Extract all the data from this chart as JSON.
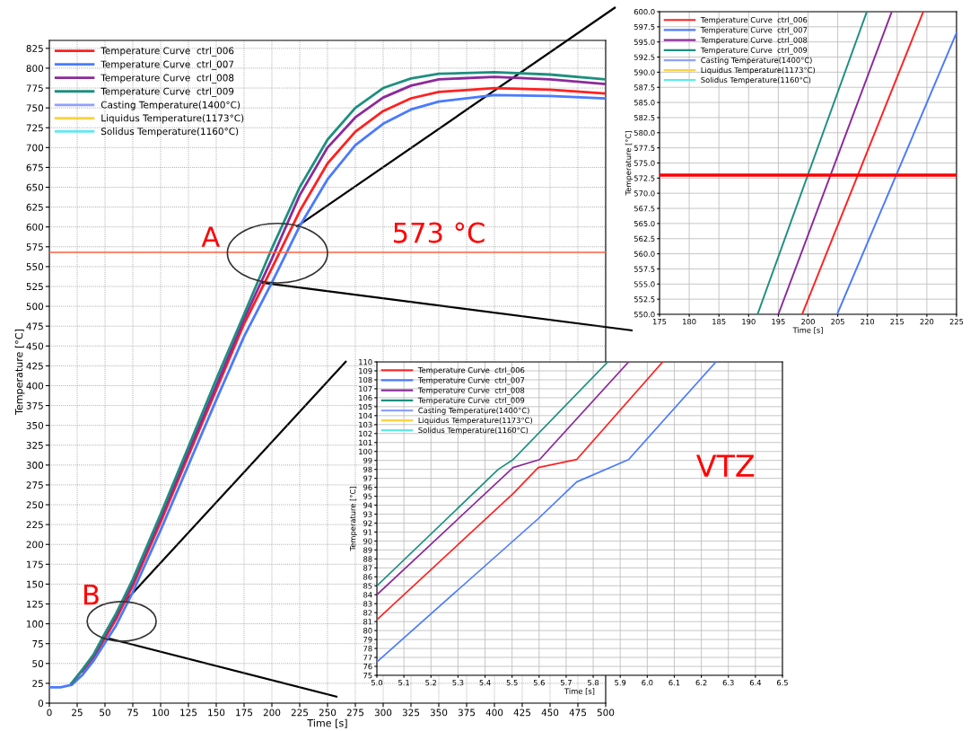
{
  "chart_data": [
    {
      "type": "line",
      "xlabel": "Time [s]",
      "ylabel": "Temperature [°C]",
      "xlim": [
        0,
        500
      ],
      "ylim": [
        0,
        835
      ],
      "xticks": [
        0,
        25,
        50,
        75,
        100,
        125,
        150,
        175,
        200,
        225,
        250,
        275,
        300,
        325,
        350,
        375,
        400,
        425,
        450,
        475,
        500
      ],
      "yticks": [
        0,
        25,
        50,
        75,
        100,
        125,
        150,
        175,
        200,
        225,
        250,
        275,
        300,
        325,
        350,
        375,
        400,
        425,
        450,
        475,
        500,
        525,
        550,
        575,
        600,
        625,
        650,
        675,
        700,
        725,
        750,
        775,
        800,
        825
      ],
      "grid": true,
      "legend": "top left",
      "x": [
        0,
        10,
        20,
        30,
        40,
        50,
        60,
        75,
        100,
        125,
        150,
        175,
        200,
        225,
        250,
        275,
        300,
        325,
        350,
        400,
        450,
        500
      ],
      "series": [
        {
          "name": "Temperature Curve  ctrl_006",
          "color": "#ff2020",
          "values": [
            null,
            null,
            null,
            40,
            58,
            82,
            106,
            148,
            228,
            312,
            395,
            478,
            548,
            620,
            680,
            720,
            746,
            762,
            770,
            775,
            773,
            768
          ]
        },
        {
          "name": "Temperature Curve  ctrl_007",
          "color": "#4a7aff",
          "values": [
            20,
            20,
            23,
            36,
            54,
            76,
            98,
            140,
            218,
            300,
            382,
            462,
            530,
            601,
            660,
            703,
            730,
            748,
            758,
            766,
            765,
            762
          ]
        },
        {
          "name": "Temperature Curve  ctrl_008",
          "color": "#8b2a9a",
          "values": [
            null,
            null,
            25,
            42,
            60,
            85,
            110,
            152,
            233,
            317,
            400,
            484,
            560,
            640,
            700,
            738,
            763,
            778,
            786,
            789,
            786,
            780
          ]
        },
        {
          "name": "Temperature Curve  ctrl_009",
          "color": "#1e8f7f",
          "values": [
            null,
            null,
            25,
            43,
            62,
            88,
            113,
            156,
            238,
            323,
            408,
            490,
            573,
            650,
            710,
            750,
            775,
            787,
            793,
            795,
            792,
            786
          ]
        },
        {
          "name": "Casting Temperature(1400°C)",
          "color": "#8fa0ff",
          "values": [
            null,
            null,
            null,
            null,
            null,
            null,
            null,
            null,
            null,
            null,
            null,
            null,
            null,
            null,
            null,
            null,
            null,
            null,
            null,
            null,
            null,
            null
          ]
        },
        {
          "name": "Liquidus Temperature(1173°C)",
          "color": "#ffd040",
          "values": [
            null,
            null,
            null,
            null,
            null,
            null,
            null,
            null,
            null,
            null,
            null,
            null,
            null,
            null,
            null,
            null,
            null,
            null,
            null,
            null,
            null,
            null
          ]
        },
        {
          "name": "Solidus Temperature(1160°C)",
          "color": "#60e8f0",
          "values": [
            null,
            null,
            null,
            null,
            null,
            null,
            null,
            null,
            null,
            null,
            null,
            null,
            null,
            null,
            null,
            null,
            null,
            null,
            null,
            null,
            null,
            null
          ]
        }
      ],
      "ref_lines": [
        {
          "axis": "y",
          "value": 568,
          "color": "#ff6040"
        }
      ],
      "annotations": [
        "A",
        "B",
        {
          "text": "573 °C",
          "x": 350,
          "y": 573
        }
      ]
    },
    {
      "type": "line",
      "xlabel": "Time [s]",
      "ylabel": "Temperature [°C]",
      "xlim": [
        175,
        225
      ],
      "ylim": [
        550,
        600
      ],
      "xticks": [
        175,
        180,
        185,
        190,
        195,
        200,
        205,
        210,
        215,
        220,
        225
      ],
      "yticks": [
        {
          "value": 550,
          "label": "550.0"
        },
        552.5,
        {
          "value": 555,
          "label": "555.0"
        },
        557.5,
        {
          "value": 560,
          "label": "560.0"
        },
        562.5,
        {
          "value": 565,
          "label": "565.0"
        },
        567.5,
        {
          "value": 570,
          "label": "570.0"
        },
        572.5,
        {
          "value": 575,
          "label": "575.0"
        },
        577.5,
        {
          "value": 580,
          "label": "580.0"
        },
        582.5,
        {
          "value": 585,
          "label": "585.0"
        },
        587.5,
        {
          "value": 590,
          "label": "590.0"
        },
        592.5,
        {
          "value": 595,
          "label": "595.0"
        },
        597.5,
        {
          "value": 600,
          "label": "600.0"
        }
      ],
      "grid": true,
      "legend": "top left",
      "series": [
        {
          "name": "Temperature Curve  ctrl_006",
          "color": "#ff2020",
          "x": [
            199.0,
            219.4
          ],
          "values": [
            550,
            600
          ]
        },
        {
          "name": "Temperature Curve  ctrl_007",
          "color": "#4a7aff",
          "x": [
            204.9,
            225
          ],
          "values": [
            550,
            596.5
          ]
        },
        {
          "name": "Temperature Curve  ctrl_008",
          "color": "#8b2a9a",
          "x": [
            195.0,
            214.1
          ],
          "values": [
            550,
            600
          ]
        },
        {
          "name": "Temperature Curve  ctrl_009",
          "color": "#1e8f7f",
          "x": [
            191.5,
            209.9
          ],
          "values": [
            550,
            600
          ]
        },
        {
          "name": "Casting Temperature(1400°C)",
          "color": "#8fa0ff"
        },
        {
          "name": "Liquidus Temperature(1173°C)",
          "color": "#ffd040"
        },
        {
          "name": "Solidus Temperature(1160°C)",
          "color": "#60e8f0"
        }
      ],
      "ref_lines": [
        {
          "axis": "y",
          "value": 573,
          "color": "#ff0000"
        }
      ]
    },
    {
      "type": "line",
      "xlabel": "Time [s]",
      "ylabel": "Temperature [°C]",
      "xlim": [
        5.0,
        6.5
      ],
      "ylim": [
        75,
        110
      ],
      "xticks": [
        {
          "value": 5.0,
          "label": "5.0"
        },
        5.1,
        5.2,
        5.3,
        5.4,
        5.5,
        5.6,
        5.7,
        5.8,
        5.9,
        {
          "value": 6.0,
          "label": "6.0"
        },
        6.1,
        6.2,
        6.3,
        6.4,
        6.5
      ],
      "yticks": [
        75,
        76,
        77,
        78,
        79,
        80,
        81,
        82,
        83,
        84,
        85,
        86,
        87,
        88,
        89,
        90,
        91,
        92,
        93,
        94,
        95,
        96,
        97,
        98,
        99,
        100,
        101,
        102,
        103,
        104,
        105,
        106,
        107,
        108,
        109,
        110
      ],
      "grid": true,
      "legend": "top left",
      "series": [
        {
          "name": "Temperature Curve  ctrl_006",
          "color": "#ff2020",
          "x": [
            5.0,
            5.504,
            5.597,
            5.739,
            6.057
          ],
          "values": [
            81.2,
            95.3,
            98.2,
            99.1,
            110
          ]
        },
        {
          "name": "Temperature Curve  ctrl_007",
          "color": "#4a7aff",
          "x": [
            5.0,
            5.597,
            5.739,
            5.931,
            6.254
          ],
          "values": [
            76.5,
            92.5,
            96.6,
            99.1,
            110
          ]
        },
        {
          "name": "Temperature Curve  ctrl_008",
          "color": "#8b2a9a",
          "x": [
            5.0,
            5.504,
            5.602,
            5.931
          ],
          "values": [
            84.0,
            98.2,
            99.1,
            110
          ]
        },
        {
          "name": "Temperature Curve  ctrl_009",
          "color": "#1e8f7f",
          "x": [
            5.0,
            5.449,
            5.504,
            5.854
          ],
          "values": [
            85.0,
            98.0,
            99.1,
            110
          ]
        },
        {
          "name": "Casting Temperature(1400°C)",
          "color": "#8fa0ff"
        },
        {
          "name": "Liquidus Temperature(1173°C)",
          "color": "#ffd040"
        },
        {
          "name": "Solidus Temperature(1160°C)",
          "color": "#60e8f0"
        }
      ],
      "annotations": [
        "VTZ"
      ]
    }
  ]
}
